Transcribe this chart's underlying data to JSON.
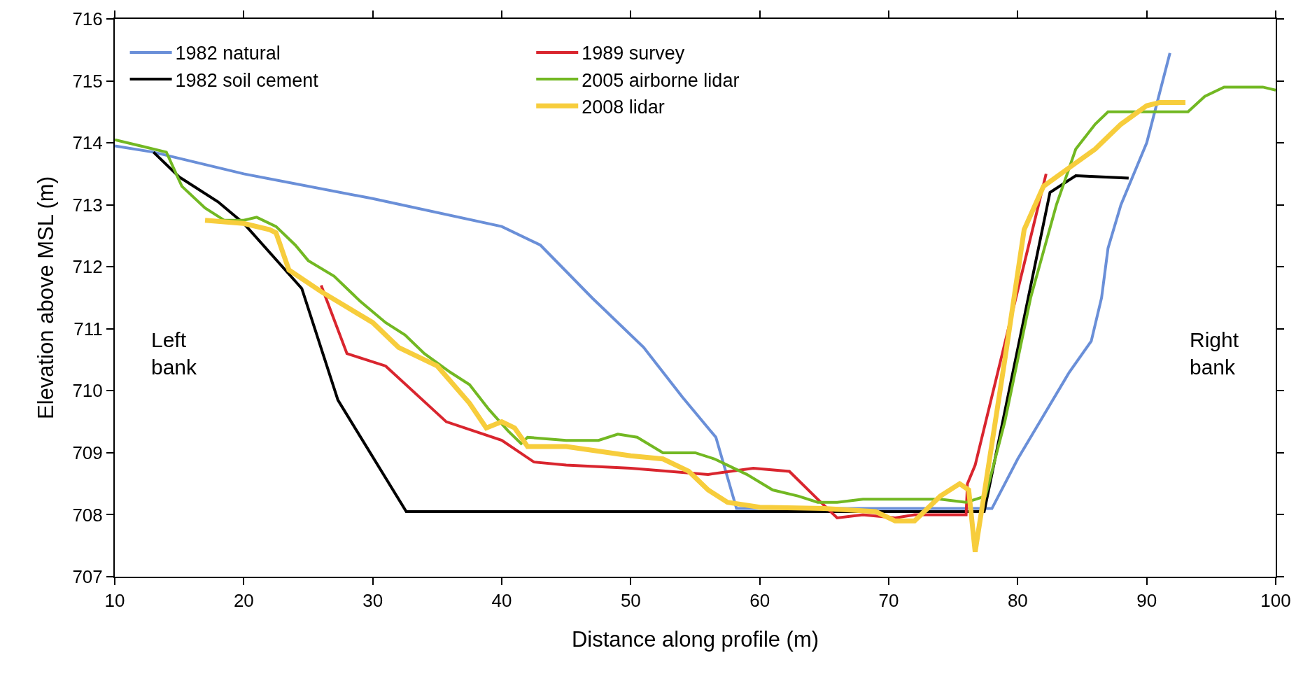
{
  "chart_data": {
    "type": "line",
    "xlabel": "Distance along profile (m)",
    "ylabel": "Elevation above MSL (m)",
    "xlim": [
      10,
      100
    ],
    "xticks": [
      10,
      20,
      30,
      40,
      50,
      60,
      70,
      80,
      90,
      100
    ],
    "ylim": [
      707,
      716
    ],
    "yticks": [
      707,
      708,
      709,
      710,
      711,
      712,
      713,
      714,
      715,
      716
    ],
    "legend": "top left",
    "marker": "none",
    "line_style": "solid",
    "annotations": [
      "Left bank",
      "Right bank"
    ],
    "series": [
      {
        "name": "1982 natural",
        "color": "#6a8fd8",
        "x": [
          10,
          13,
          20,
          30,
          40,
          43,
          47,
          51,
          54,
          56.6,
          58.2,
          78,
          80,
          82,
          84,
          85.7,
          86.5,
          87,
          88,
          90,
          91.8
        ],
        "values": [
          713.95,
          713.85,
          713.5,
          713.1,
          712.65,
          712.35,
          711.5,
          710.7,
          709.9,
          709.25,
          708.1,
          708.1,
          708.9,
          709.6,
          710.3,
          710.8,
          711.5,
          712.3,
          713,
          714,
          715.45
        ]
      },
      {
        "name": "1982 soil cement",
        "color": "#000000",
        "x": [
          13,
          15,
          18,
          20,
          24.5,
          27.3,
          32.6,
          77.4,
          82.5,
          84.5,
          88.6
        ],
        "values": [
          713.85,
          713.45,
          713.05,
          712.7,
          711.65,
          709.85,
          708.05,
          708.05,
          713.2,
          713.47,
          713.43
        ]
      },
      {
        "name": "1989 survey",
        "color": "#d9252e",
        "x": [
          26,
          28,
          31,
          35.7,
          40,
          42.5,
          45,
          50,
          56,
          59.5,
          62.3,
          64.5,
          66,
          68,
          70.5,
          72,
          76,
          76.1,
          76.7,
          82.2
        ],
        "values": [
          711.7,
          710.6,
          710.4,
          709.5,
          709.2,
          708.85,
          708.8,
          708.75,
          708.65,
          708.75,
          708.7,
          708.25,
          707.95,
          708.0,
          707.95,
          708.0,
          708.0,
          708.5,
          708.8,
          713.5
        ]
      },
      {
        "name": "2005 airborne lidar",
        "color": "#72b822",
        "x": [
          10,
          12,
          14,
          15.2,
          17,
          18.5,
          20,
          21,
          22.5,
          24,
          25,
          27,
          29,
          31,
          32.5,
          34,
          36,
          37.5,
          39,
          40.5,
          41.5,
          42,
          45,
          47.5,
          49,
          50.5,
          52.5,
          55,
          56.5,
          57.5,
          59,
          61,
          63,
          64.5,
          66,
          68,
          70,
          74,
          76,
          77.5,
          79,
          81,
          83,
          84.5,
          86,
          87,
          92,
          93.2,
          94.5,
          96,
          99,
          100
        ],
        "values": [
          714.05,
          713.95,
          713.85,
          713.3,
          712.95,
          712.75,
          712.75,
          712.8,
          712.65,
          712.35,
          712.1,
          711.85,
          711.45,
          711.1,
          710.9,
          710.6,
          710.3,
          710.1,
          709.7,
          709.35,
          709.15,
          709.25,
          709.2,
          709.2,
          709.3,
          709.25,
          709.0,
          709.0,
          708.9,
          708.8,
          708.65,
          708.4,
          708.3,
          708.2,
          708.2,
          708.25,
          708.25,
          708.25,
          708.2,
          708.3,
          709.5,
          711.5,
          713.0,
          713.9,
          714.3,
          714.5,
          714.5,
          714.5,
          714.75,
          714.9,
          714.9,
          714.85
        ]
      },
      {
        "name": "2008 lidar",
        "color": "#f7cd3c",
        "x": [
          17,
          20,
          22,
          22.5,
          23.5,
          26,
          28,
          30,
          32,
          35,
          37.5,
          38.8,
          40,
          41,
          42,
          45,
          50,
          52.5,
          54.5,
          56,
          57.5,
          60,
          65,
          69,
          70.5,
          72,
          74,
          75.5,
          76.2,
          76.7,
          77.3,
          79,
          80.5,
          82,
          84,
          86,
          88,
          90,
          91,
          93
        ],
        "values": [
          712.75,
          712.7,
          712.6,
          712.55,
          711.95,
          711.6,
          711.35,
          711.1,
          710.7,
          710.4,
          709.8,
          709.4,
          709.5,
          709.4,
          709.1,
          709.1,
          708.95,
          708.9,
          708.7,
          708.4,
          708.2,
          708.12,
          708.1,
          708.05,
          707.9,
          707.9,
          708.3,
          708.5,
          708.4,
          707.4,
          708.2,
          710.5,
          712.6,
          713.3,
          713.6,
          713.9,
          714.3,
          714.6,
          714.65,
          714.65
        ]
      }
    ]
  }
}
